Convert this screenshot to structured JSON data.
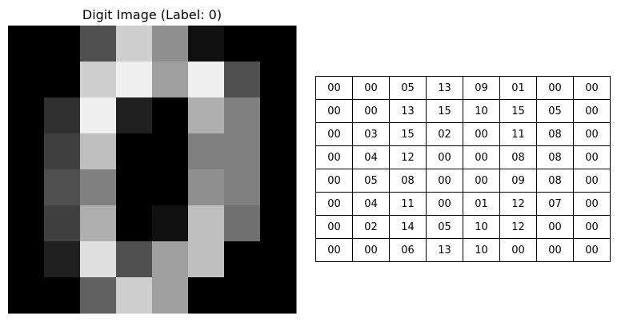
{
  "chart_data": [
    {
      "type": "heatmap",
      "title": "Digit Image (Label: 0)",
      "colormap": "gray",
      "vmin": 0,
      "vmax": 16,
      "axes_visible": false,
      "values": [
        [
          0,
          0,
          5,
          13,
          9,
          1,
          0,
          0
        ],
        [
          0,
          0,
          13,
          15,
          10,
          15,
          5,
          0
        ],
        [
          0,
          3,
          15,
          2,
          0,
          11,
          8,
          0
        ],
        [
          0,
          4,
          12,
          0,
          0,
          8,
          8,
          0
        ],
        [
          0,
          5,
          8,
          0,
          0,
          9,
          8,
          0
        ],
        [
          0,
          4,
          11,
          0,
          1,
          12,
          7,
          0
        ],
        [
          0,
          2,
          14,
          5,
          10,
          12,
          0,
          0
        ],
        [
          0,
          0,
          6,
          13,
          10,
          0,
          0,
          0
        ]
      ]
    },
    {
      "type": "table",
      "rows": [
        [
          "00",
          "00",
          "05",
          "13",
          "09",
          "01",
          "00",
          "00"
        ],
        [
          "00",
          "00",
          "13",
          "15",
          "10",
          "15",
          "05",
          "00"
        ],
        [
          "00",
          "03",
          "15",
          "02",
          "00",
          "11",
          "08",
          "00"
        ],
        [
          "00",
          "04",
          "12",
          "00",
          "00",
          "08",
          "08",
          "00"
        ],
        [
          "00",
          "05",
          "08",
          "00",
          "00",
          "09",
          "08",
          "00"
        ],
        [
          "00",
          "04",
          "11",
          "00",
          "01",
          "12",
          "07",
          "00"
        ],
        [
          "00",
          "02",
          "14",
          "05",
          "10",
          "12",
          "00",
          "00"
        ],
        [
          "00",
          "00",
          "06",
          "13",
          "10",
          "00",
          "00",
          "00"
        ]
      ]
    }
  ]
}
